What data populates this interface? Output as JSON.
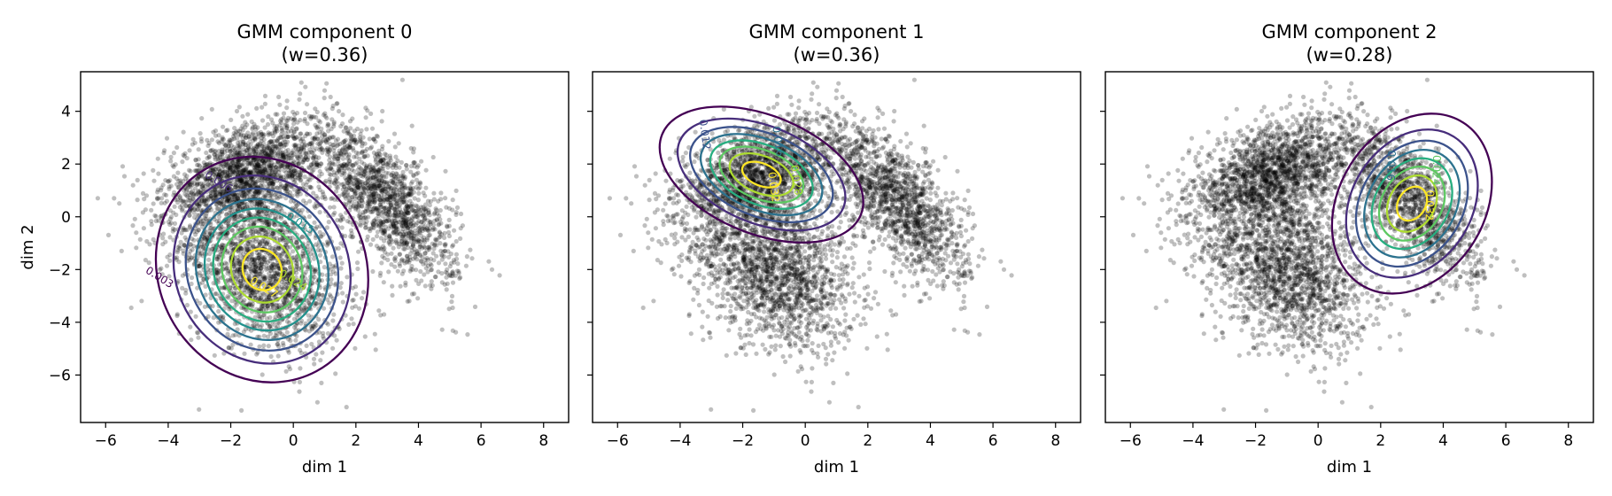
{
  "chart_data": [
    {
      "type": "scatter",
      "title_line1": "GMM component 0",
      "title_line2": "(w=0.36)",
      "xlabel": "dim 1",
      "ylabel": "dim 2",
      "xlim": [
        -6.8,
        8.8
      ],
      "ylim": [
        -7.8,
        5.5
      ],
      "xticks": [
        -6,
        -4,
        -2,
        0,
        2,
        4,
        6,
        8
      ],
      "yticks": [
        -6,
        -4,
        -2,
        0,
        2,
        4
      ],
      "ytick_labels_shown": true,
      "weight": 0.36,
      "component_mean": [
        -1.0,
        -2.0
      ],
      "contour_levels": [
        0.003,
        0.006,
        0.009,
        0.012,
        0.015,
        0.018,
        0.021,
        0.024,
        0.027
      ],
      "contour_labels": [
        "0.003",
        "0.006",
        "0.015",
        "0.024",
        "0.027"
      ]
    },
    {
      "type": "scatter",
      "title_line1": "GMM component 1",
      "title_line2": "(w=0.36)",
      "xlabel": "dim 1",
      "ylabel": "",
      "xlim": [
        -6.8,
        8.8
      ],
      "ylim": [
        -7.8,
        5.5
      ],
      "xticks": [
        -6,
        -4,
        -2,
        0,
        2,
        4,
        6,
        8
      ],
      "yticks": [
        -6,
        -4,
        -2,
        0,
        2,
        4
      ],
      "ytick_labels_shown": false,
      "weight": 0.36,
      "component_mean": [
        -1.4,
        1.6
      ],
      "contour_levels": [
        0.004,
        0.008,
        0.012,
        0.016,
        0.02,
        0.024,
        0.028,
        0.032
      ],
      "contour_labels": [
        "0.012",
        "0.016",
        "0.028",
        "0.032"
      ]
    },
    {
      "type": "scatter",
      "title_line1": "GMM component 2",
      "title_line2": "(w=0.28)",
      "xlabel": "dim 1",
      "ylabel": "",
      "xlim": [
        -6.8,
        8.8
      ],
      "ylim": [
        -7.8,
        5.5
      ],
      "xticks": [
        -6,
        -4,
        -2,
        0,
        2,
        4,
        6,
        8
      ],
      "yticks": [
        -6,
        -4,
        -2,
        0,
        2,
        4
      ],
      "ytick_labels_shown": false,
      "weight": 0.28,
      "component_mean": [
        3.0,
        0.5
      ],
      "contour_levels": [
        0.004,
        0.008,
        0.012,
        0.016,
        0.02,
        0.024,
        0.028,
        0.032
      ],
      "contour_labels": [
        "0.016",
        "0.024",
        "0.032"
      ]
    }
  ],
  "style": {
    "point_color": "#000000",
    "contour_colors": [
      "#440154",
      "#472d7b",
      "#3b528b",
      "#2c728e",
      "#21918c",
      "#28ae80",
      "#5ec962",
      "#addc30",
      "#fde725"
    ]
  }
}
